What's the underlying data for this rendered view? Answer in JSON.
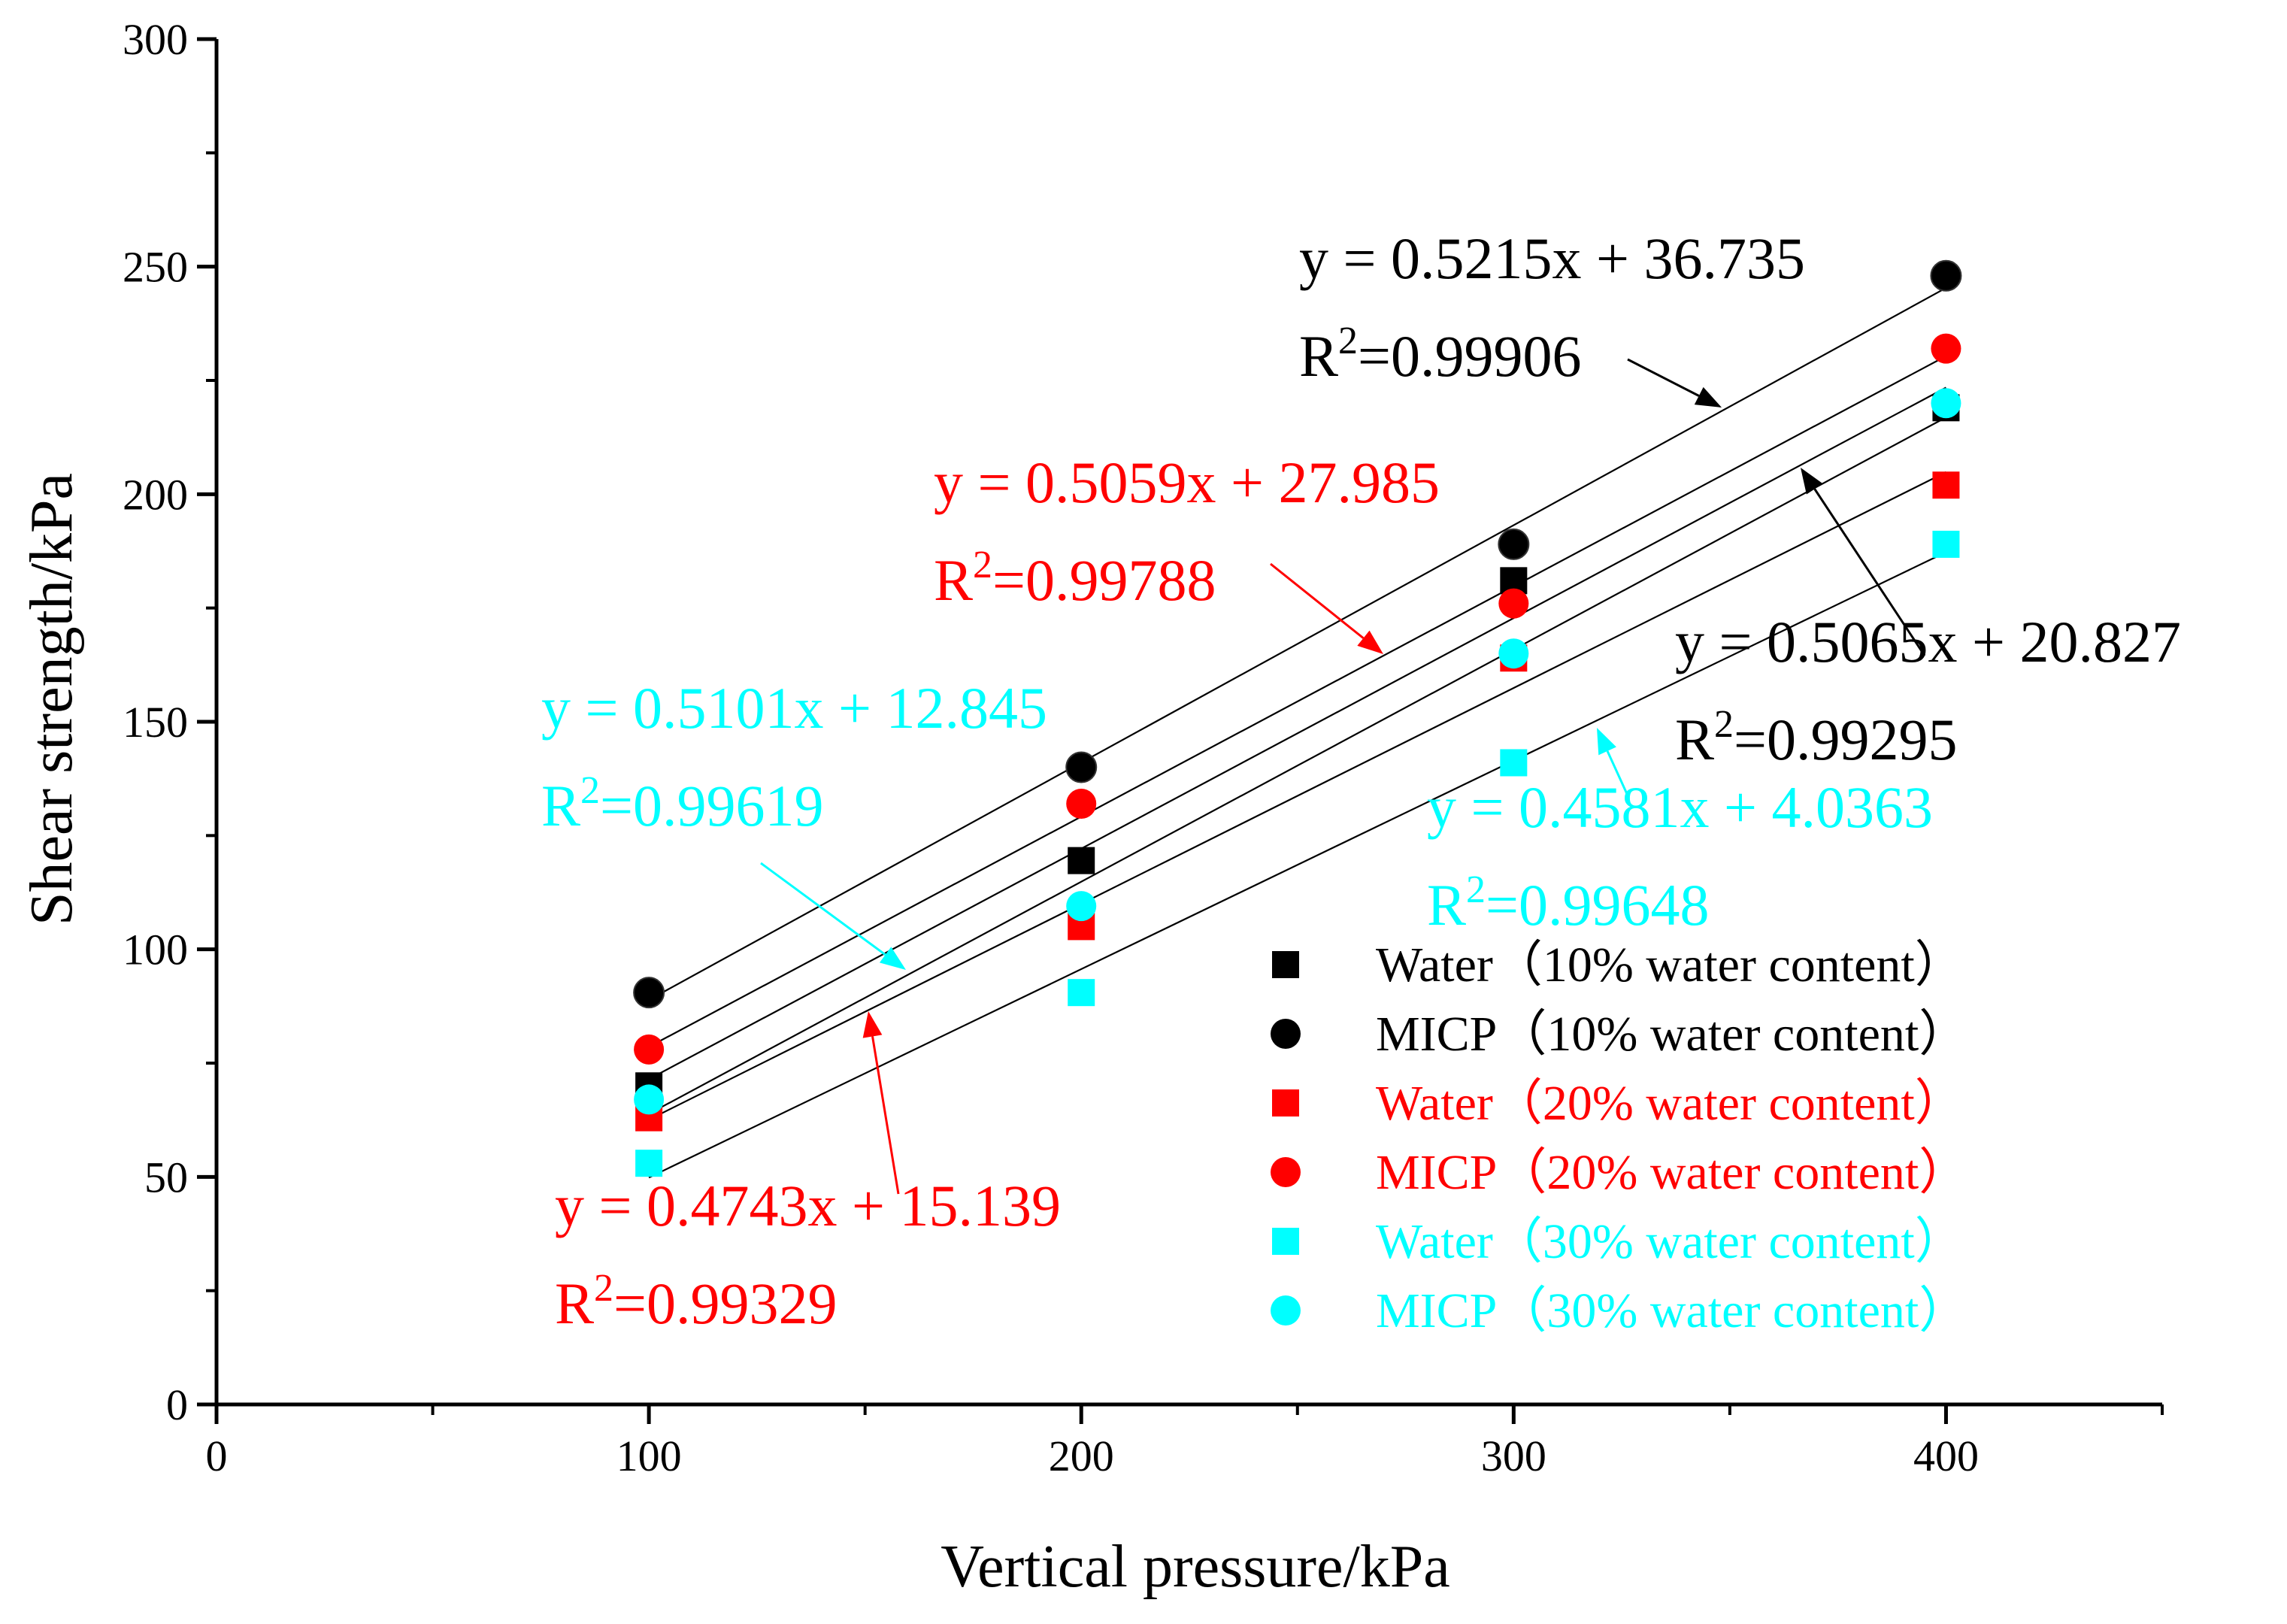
{
  "colors": {
    "black": "#000000",
    "red": "#ff0000",
    "cyan": "#00ffff"
  },
  "chart_data": {
    "type": "scatter",
    "xlabel": "Vertical pressure/kPa",
    "ylabel": "Shear strength/kPa",
    "xlim": [
      0,
      450
    ],
    "ylim": [
      0,
      300
    ],
    "x_ticks": [
      "0",
      "100",
      "200",
      "300",
      "400"
    ],
    "y_ticks": [
      "0",
      "50",
      "100",
      "150",
      "200",
      "250",
      "300"
    ],
    "x": [
      100,
      200,
      300,
      400
    ],
    "series": [
      {
        "name": "Water（10% water content）",
        "marker": "square",
        "color": "#000000",
        "values": [
          70,
          119.5,
          181,
          219
        ]
      },
      {
        "name": "MICP（10% water content）",
        "marker": "circle",
        "color": "#000000",
        "values": [
          90.5,
          140,
          189,
          248
        ]
      },
      {
        "name": "Water（20% water content）",
        "marker": "square",
        "color": "#ff0000",
        "values": [
          63,
          105,
          164,
          202
        ]
      },
      {
        "name": "MICP（20% water content）",
        "marker": "circle",
        "color": "#ff0000",
        "values": [
          78,
          132,
          176,
          232
        ]
      },
      {
        "name": "Water（30% water content）",
        "marker": "square",
        "color": "#00ffff",
        "values": [
          53,
          90.5,
          141,
          189
        ]
      },
      {
        "name": "MICP（30% water content）",
        "marker": "circle",
        "color": "#00ffff",
        "values": [
          67,
          109.5,
          165,
          220
        ]
      }
    ],
    "fit_lines": [
      {
        "slope": 0.5215,
        "intercept": 36.735
      },
      {
        "slope": 0.5059,
        "intercept": 27.985
      },
      {
        "slope": 0.5101,
        "intercept": 12.845
      },
      {
        "slope": 0.5065,
        "intercept": 20.827
      },
      {
        "slope": 0.4743,
        "intercept": 15.139
      },
      {
        "slope": 0.4581,
        "intercept": 4.0363
      }
    ],
    "annotations": [
      {
        "eq": "y = 0.5215x + 36.735",
        "r2_prefix": "R",
        "r2_sup": "2",
        "r2_value": "=0.99906",
        "color": "#000000"
      },
      {
        "eq": "y = 0.5059x + 27.985",
        "r2_prefix": "R",
        "r2_sup": "2",
        "r2_value": "=0.99788",
        "color": "#ff0000"
      },
      {
        "eq": "y = 0.5065x + 20.827",
        "r2_prefix": "R",
        "r2_sup": "2",
        "r2_value": "=0.99295",
        "color": "#000000"
      },
      {
        "eq": "y = 0.5101x + 12.845",
        "r2_prefix": "R",
        "r2_sup": "2",
        "r2_value": "=0.99619",
        "color": "#00ffff"
      },
      {
        "eq": "y = 0.4581x + 4.0363",
        "r2_prefix": "R",
        "r2_sup": "2",
        "r2_value": "=0.99648",
        "color": "#00ffff"
      },
      {
        "eq": "y = 0.4743x + 15.139",
        "r2_prefix": "R",
        "r2_sup": "2",
        "r2_value": "=0.99329",
        "color": "#ff0000"
      }
    ],
    "legend_position": "bottom-right"
  }
}
